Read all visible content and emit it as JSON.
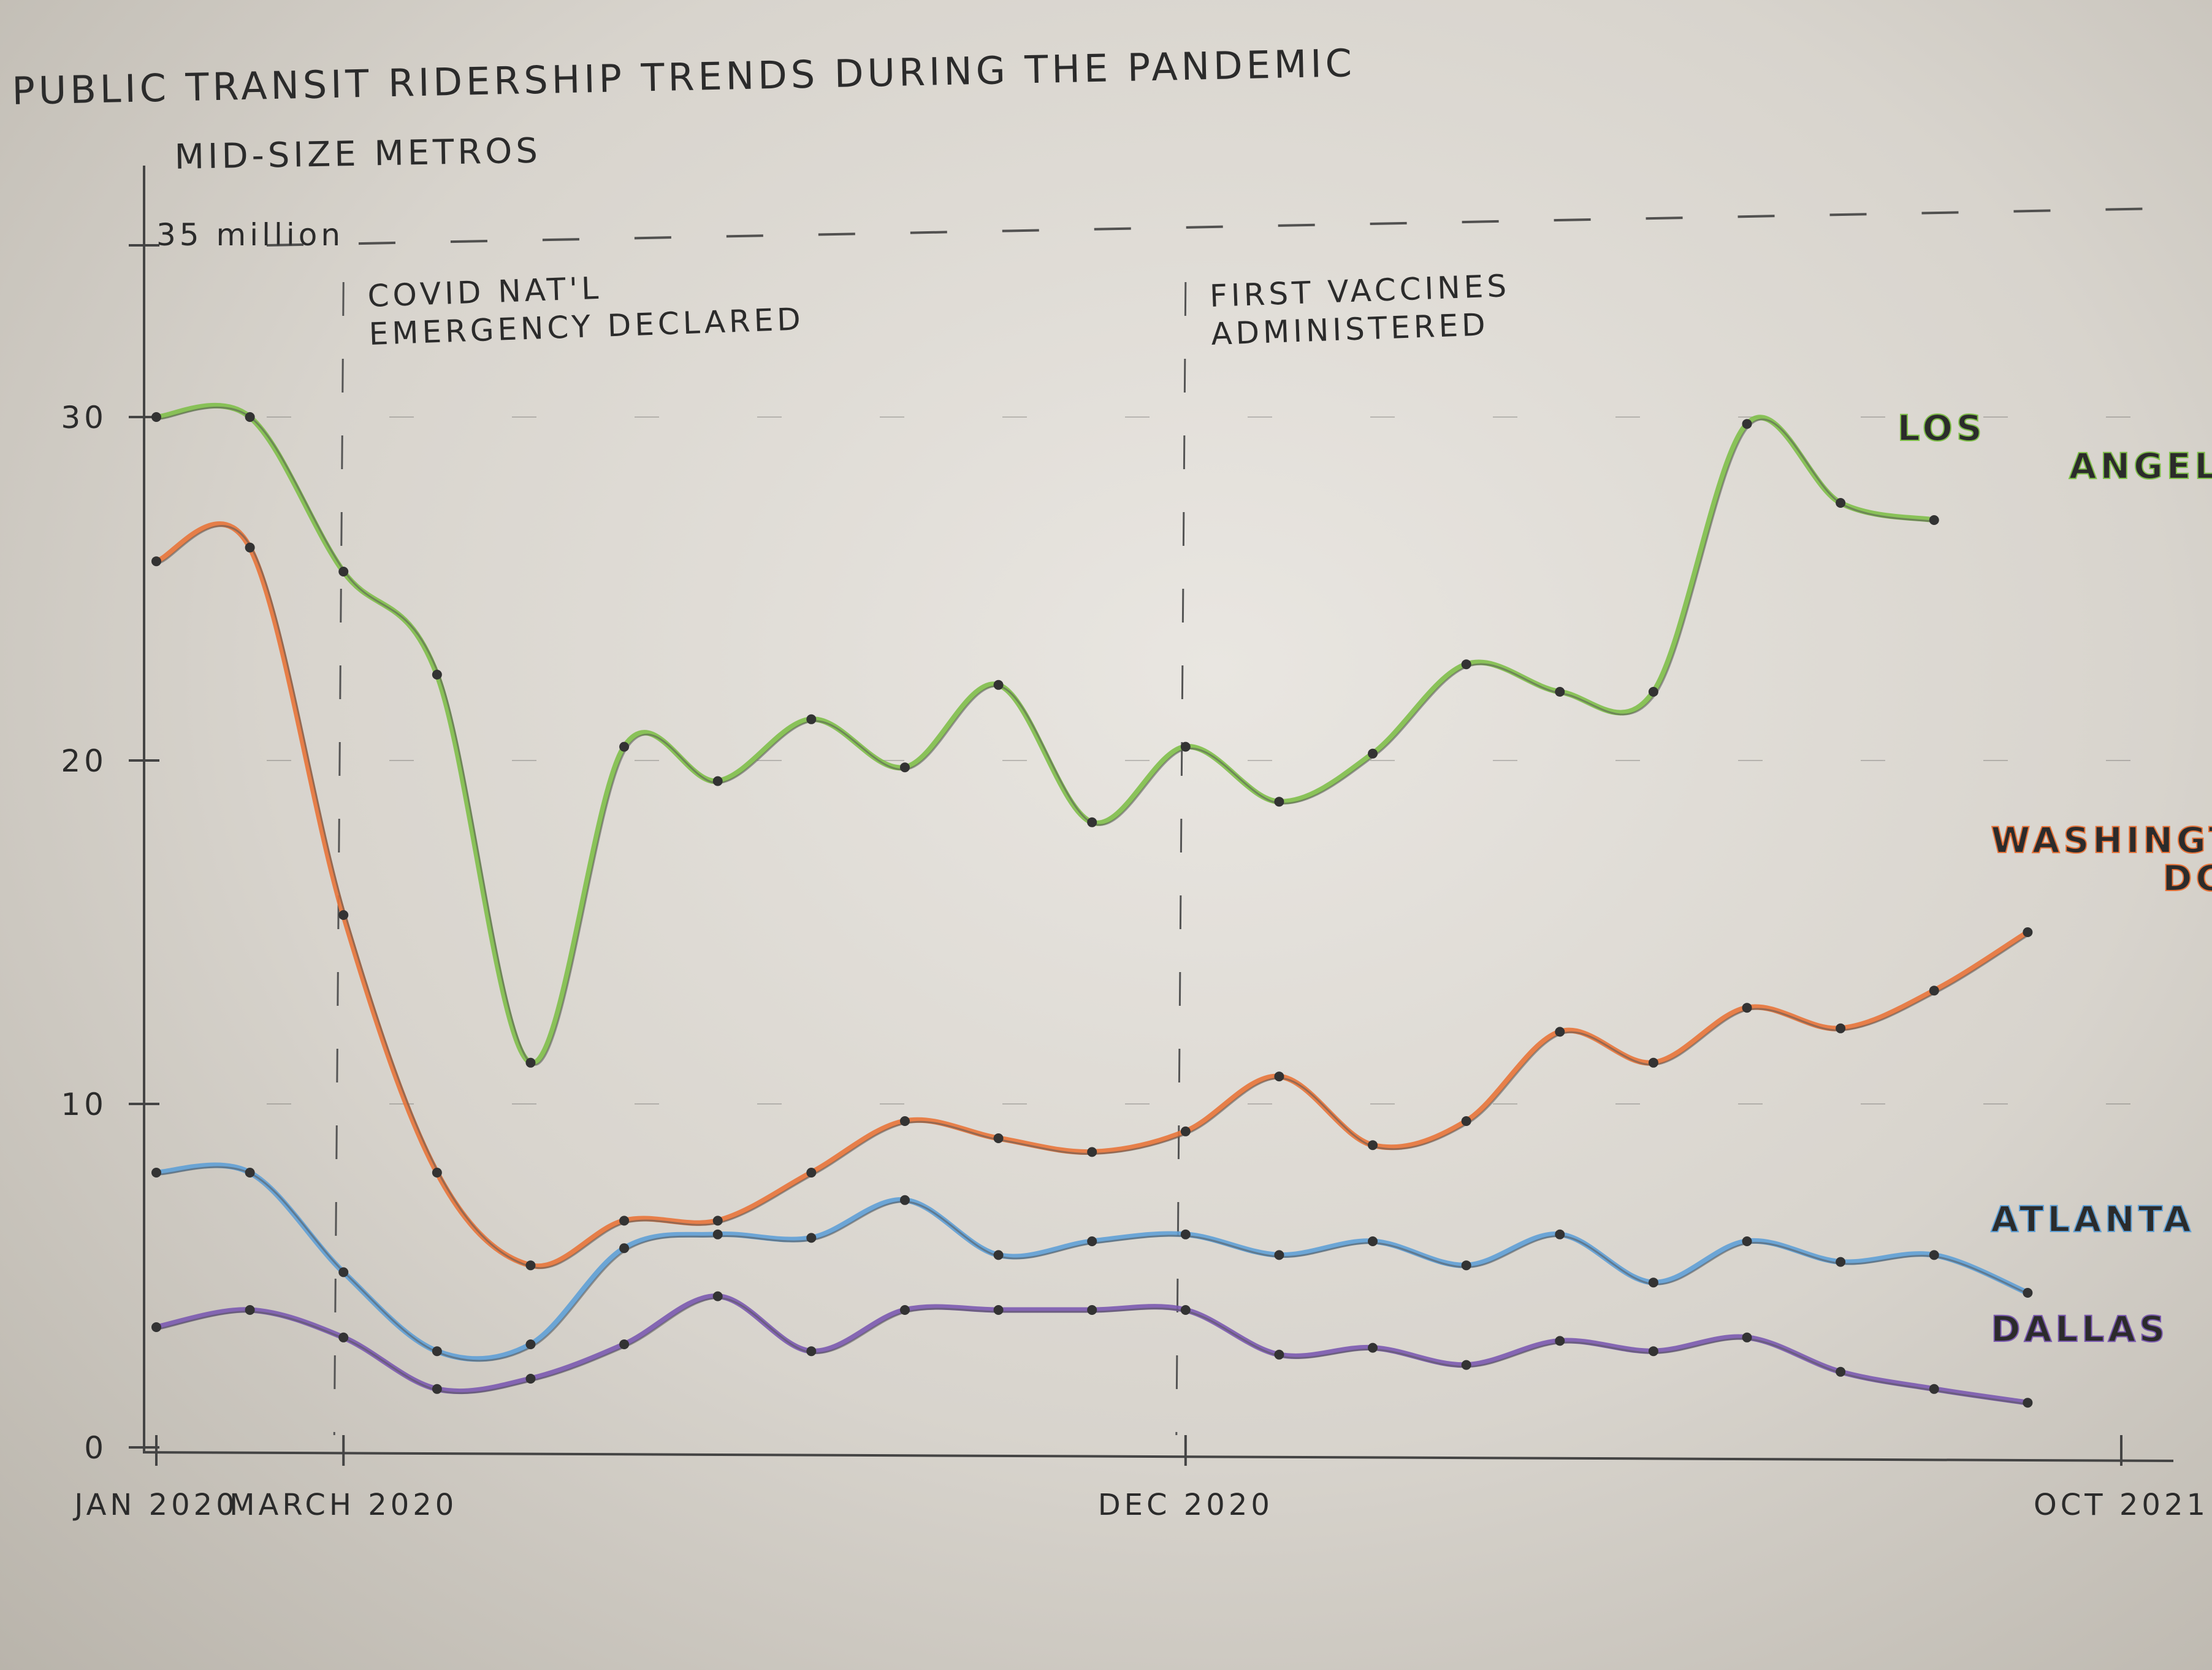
{
  "chart_data": {
    "type": "line",
    "title": "PUBLIC TRANSIT RIDERSHIP TRENDS DURING THE PANDEMIC",
    "subtitle": "MID-SIZE METROS",
    "ylabel_top": "35 million",
    "ylim": [
      0,
      35
    ],
    "y_ticks": [
      {
        "value": 0,
        "label": "0"
      },
      {
        "value": 10,
        "label": "10"
      },
      {
        "value": 20,
        "label": "20"
      },
      {
        "value": 30,
        "label": "30"
      }
    ],
    "x_start": "2020-01",
    "x_end": "2021-10",
    "x_ticks": [
      {
        "x": "2020-01",
        "label": "JAN 2020"
      },
      {
        "x": "2020-03",
        "label": "MARCH 2020"
      },
      {
        "x": "2020-12",
        "label": "DEC 2020"
      },
      {
        "x": "2021-10",
        "label": "OCT 2021"
      }
    ],
    "annotations": [
      {
        "x": "2020-03",
        "lines": [
          "COVID NAT'L",
          "EMERGENCY DECLARED"
        ]
      },
      {
        "x": "2020-12",
        "lines": [
          "FIRST VACCINES",
          "ADMINISTERED"
        ]
      }
    ],
    "grid": "dashed horizontal",
    "series": [
      {
        "name": "LOS ANGELES",
        "color": "#7fbf4a",
        "points": [
          [
            "2020-01",
            30.0
          ],
          [
            "2020-02",
            30.0
          ],
          [
            "2020-03",
            25.5
          ],
          [
            "2020-04",
            22.5
          ],
          [
            "2020-05",
            11.2
          ],
          [
            "2020-06",
            20.4
          ],
          [
            "2020-07",
            19.4
          ],
          [
            "2020-08",
            21.2
          ],
          [
            "2020-09",
            19.8
          ],
          [
            "2020-10",
            22.2
          ],
          [
            "2020-11",
            18.2
          ],
          [
            "2020-12",
            20.4
          ],
          [
            "2021-01",
            18.8
          ],
          [
            "2021-02",
            20.2
          ],
          [
            "2021-03",
            22.8
          ],
          [
            "2021-04",
            22.0
          ],
          [
            "2021-05",
            22.0
          ],
          [
            "2021-06",
            29.8
          ],
          [
            "2021-07",
            27.5
          ],
          [
            "2021-08",
            27.0
          ]
        ]
      },
      {
        "name": "WASHINGTON DC",
        "color": "#e8743a",
        "points": [
          [
            "2020-01",
            25.8
          ],
          [
            "2020-02",
            26.2
          ],
          [
            "2020-03",
            15.5
          ],
          [
            "2020-04",
            8.0
          ],
          [
            "2020-05",
            5.3
          ],
          [
            "2020-06",
            6.6
          ],
          [
            "2020-07",
            6.6
          ],
          [
            "2020-08",
            8.0
          ],
          [
            "2020-09",
            9.5
          ],
          [
            "2020-10",
            9.0
          ],
          [
            "2020-11",
            8.6
          ],
          [
            "2020-12",
            9.2
          ],
          [
            "2021-01",
            10.8
          ],
          [
            "2021-02",
            8.8
          ],
          [
            "2021-03",
            9.5
          ],
          [
            "2021-04",
            12.1
          ],
          [
            "2021-05",
            11.2
          ],
          [
            "2021-06",
            12.8
          ],
          [
            "2021-07",
            12.2
          ],
          [
            "2021-08",
            13.3
          ],
          [
            "2021-09",
            15.0
          ]
        ]
      },
      {
        "name": "ATLANTA",
        "color": "#5fa0d6",
        "points": [
          [
            "2020-01",
            8.0
          ],
          [
            "2020-02",
            8.0
          ],
          [
            "2020-03",
            5.1
          ],
          [
            "2020-04",
            2.8
          ],
          [
            "2020-05",
            3.0
          ],
          [
            "2020-06",
            5.8
          ],
          [
            "2020-07",
            6.2
          ],
          [
            "2020-08",
            6.1
          ],
          [
            "2020-09",
            7.2
          ],
          [
            "2020-10",
            5.6
          ],
          [
            "2020-11",
            6.0
          ],
          [
            "2020-12",
            6.2
          ],
          [
            "2021-01",
            5.6
          ],
          [
            "2021-02",
            6.0
          ],
          [
            "2021-03",
            5.3
          ],
          [
            "2021-04",
            6.2
          ],
          [
            "2021-05",
            4.8
          ],
          [
            "2021-06",
            6.0
          ],
          [
            "2021-07",
            5.4
          ],
          [
            "2021-08",
            5.6
          ],
          [
            "2021-09",
            4.5
          ]
        ]
      },
      {
        "name": "DALLAS",
        "color": "#7b5ab0",
        "points": [
          [
            "2020-01",
            3.5
          ],
          [
            "2020-02",
            4.0
          ],
          [
            "2020-03",
            3.2
          ],
          [
            "2020-04",
            1.7
          ],
          [
            "2020-05",
            2.0
          ],
          [
            "2020-06",
            3.0
          ],
          [
            "2020-07",
            4.4
          ],
          [
            "2020-08",
            2.8
          ],
          [
            "2020-09",
            4.0
          ],
          [
            "2020-10",
            4.0
          ],
          [
            "2020-11",
            4.0
          ],
          [
            "2020-12",
            4.0
          ],
          [
            "2021-01",
            2.7
          ],
          [
            "2021-02",
            2.9
          ],
          [
            "2021-03",
            2.4
          ],
          [
            "2021-04",
            3.1
          ],
          [
            "2021-05",
            2.8
          ],
          [
            "2021-06",
            3.2
          ],
          [
            "2021-07",
            2.2
          ],
          [
            "2021-08",
            1.7
          ],
          [
            "2021-09",
            1.3
          ]
        ]
      }
    ]
  }
}
